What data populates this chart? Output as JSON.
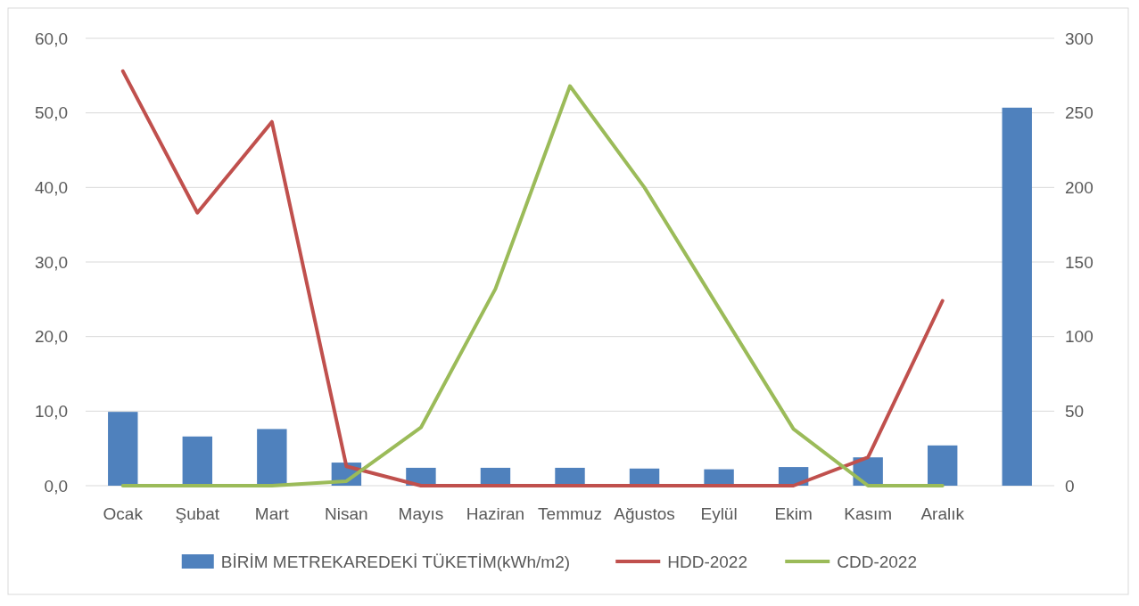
{
  "chart_data": {
    "type": "bar",
    "categories": [
      "Ocak",
      "Şubat",
      "Mart",
      "Nisan",
      "Mayıs",
      "Haziran",
      "Temmuz",
      "Ağustos",
      "Eylül",
      "Ekim",
      "Kasım",
      "Aralık",
      null
    ],
    "series": [
      {
        "name": "BİRİM METREKAREDEKİ TÜKETİM(kWh/m2)",
        "color": "#4f81bd",
        "values": [
          9.9,
          6.6,
          7.6,
          3.1,
          2.4,
          2.4,
          2.4,
          2.3,
          2.2,
          2.5,
          3.8,
          5.4,
          50.7
        ]
      },
      {
        "name": "HDD-2022",
        "type": "line",
        "axis": "y2",
        "color": "#c0504d",
        "values": [
          278,
          183,
          244,
          13,
          0,
          0,
          0,
          0,
          0,
          0,
          19,
          124,
          null
        ]
      },
      {
        "name": "CDD-2022",
        "type": "line",
        "axis": "y2",
        "color": "#9bbb59",
        "values": [
          0,
          0,
          0,
          3,
          39,
          132,
          268,
          200,
          119,
          38,
          0,
          0,
          null
        ]
      }
    ],
    "ylim": [
      0,
      60
    ],
    "yticks": [
      {
        "value": 0,
        "label": "0,0"
      },
      {
        "value": 10,
        "label": "10,0"
      },
      {
        "value": 20,
        "label": "20,0"
      },
      {
        "value": 30,
        "label": "30,0"
      },
      {
        "value": 40,
        "label": "40,0"
      },
      {
        "value": 50,
        "label": "50,0"
      },
      {
        "value": 60,
        "label": "60,0"
      }
    ],
    "y2lim": [
      0,
      300
    ],
    "y2ticks": [
      0,
      50,
      100,
      150,
      200,
      250,
      300
    ],
    "grid": "y",
    "legend": "bottom"
  }
}
